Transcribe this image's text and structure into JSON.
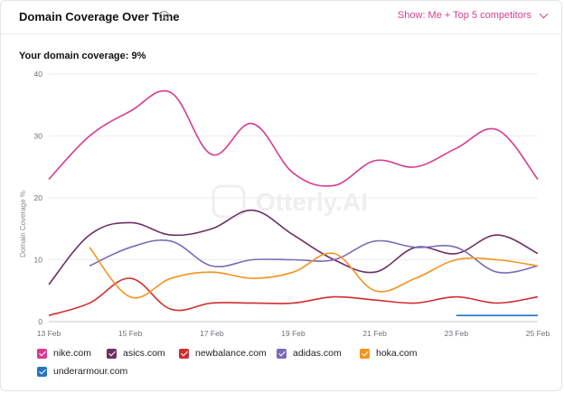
{
  "header": {
    "title": "Domain Coverage Over Time",
    "info_icon": "info-icon",
    "show_label": "Show: Me + Top 5 competitors"
  },
  "coverage_label": "Your domain coverage: 9%",
  "watermark": "Otterly.AI",
  "legend": [
    {
      "name": "nike.com",
      "color": "#d93a8e"
    },
    {
      "name": "asics.com",
      "color": "#6e2f63"
    },
    {
      "name": "newbalance.com",
      "color": "#d22e2e"
    },
    {
      "name": "adidas.com",
      "color": "#7c6ab8"
    },
    {
      "name": "hoka.com",
      "color": "#f39421"
    },
    {
      "name": "underarmour.com",
      "color": "#2474c4"
    }
  ],
  "chart_data": {
    "type": "line",
    "ylabel": "Domain Coverage %",
    "xlabel": "",
    "ylim": [
      0,
      40
    ],
    "yticks": [
      0,
      10,
      20,
      30,
      40
    ],
    "x": [
      "13 Feb",
      "14 Feb",
      "15 Feb",
      "16 Feb",
      "17 Feb",
      "18 Feb",
      "19 Feb",
      "20 Feb",
      "21 Feb",
      "22 Feb",
      "23 Feb",
      "24 Feb",
      "25 Feb"
    ],
    "xtick_labels": [
      "13 Feb",
      "15 Feb",
      "17 Feb",
      "19 Feb",
      "21 Feb",
      "23 Feb",
      "25 Feb"
    ],
    "series": [
      {
        "name": "nike.com",
        "color": "#d93a8e",
        "values": [
          23,
          30,
          34,
          37,
          27,
          32,
          24,
          22,
          26,
          25,
          28,
          31,
          23
        ]
      },
      {
        "name": "asics.com",
        "color": "#6e2f63",
        "values": [
          6,
          14,
          16,
          14,
          15,
          18,
          14,
          10,
          8,
          12,
          11,
          14,
          11
        ]
      },
      {
        "name": "newbalance.com",
        "color": "#d22e2e",
        "values": [
          1,
          3,
          7,
          2,
          3,
          3,
          3,
          4,
          3.5,
          3,
          4,
          3,
          4
        ]
      },
      {
        "name": "adidas.com",
        "color": "#7c6ab8",
        "values": [
          null,
          9,
          12,
          13,
          9,
          10,
          10,
          10,
          13,
          12,
          12,
          8,
          9
        ]
      },
      {
        "name": "hoka.com",
        "color": "#f39421",
        "values": [
          null,
          12,
          4,
          7,
          8,
          7,
          8,
          11,
          5,
          7,
          10,
          10,
          9
        ]
      },
      {
        "name": "underarmour.com",
        "color": "#2474c4",
        "values": [
          null,
          null,
          null,
          null,
          null,
          null,
          null,
          null,
          null,
          null,
          1,
          1,
          1
        ]
      }
    ]
  }
}
